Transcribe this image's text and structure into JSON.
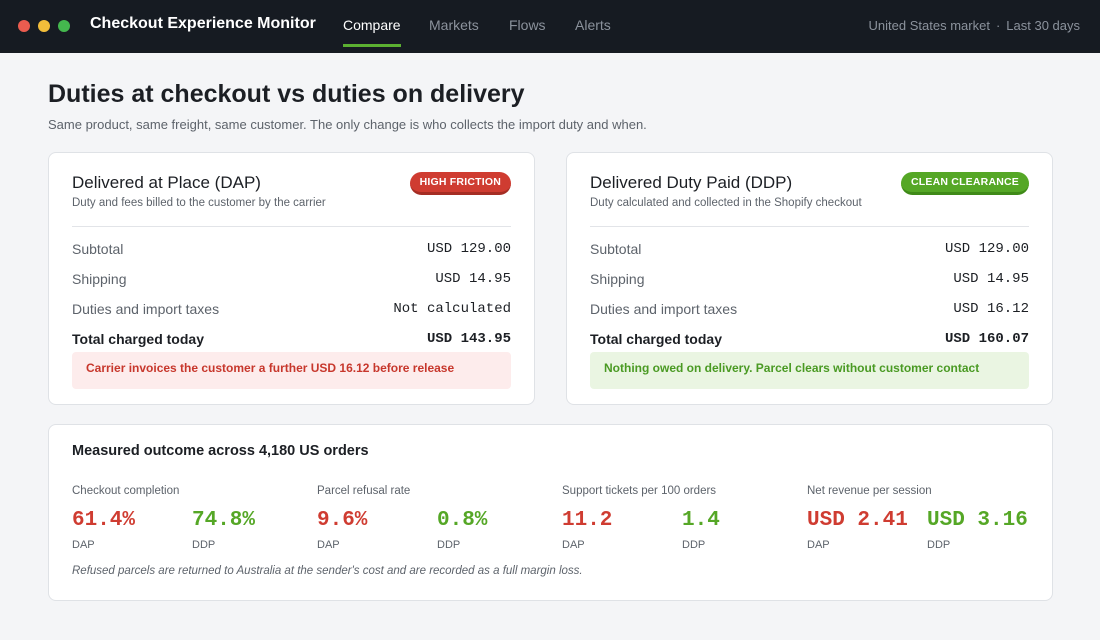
{
  "window": {
    "dots": [
      "close-dot",
      "minimize-dot",
      "maximize-dot"
    ],
    "title": "Checkout Experience Monitor"
  },
  "nav": {
    "tabs": [
      {
        "label": "Compare",
        "active": true
      },
      {
        "label": "Markets",
        "active": false
      },
      {
        "label": "Flows",
        "active": false
      },
      {
        "label": "Alerts",
        "active": false
      }
    ],
    "market": "United States market",
    "separator": "·",
    "period": "Last 30 days"
  },
  "page": {
    "title": "Duties at checkout vs duties on delivery",
    "subtitle": "Same product, same freight, same customer. The only change is who collects the import duty and when."
  },
  "colors": {
    "accent": "#5bb031",
    "dap": "#cf3c31",
    "ddp": "#55a726"
  },
  "cards": {
    "dap": {
      "title": "Delivered at Place (DAP)",
      "description": "Duty and fees billed to the customer by the carrier",
      "badge": "HIGH FRICTION",
      "lines": [
        {
          "label": "Subtotal",
          "value": "USD 129.00"
        },
        {
          "label": "Shipping",
          "value": "USD 14.95"
        },
        {
          "label": "Duties and import taxes",
          "value": "Not calculated"
        },
        {
          "label": "Total charged today",
          "value": "USD 143.95"
        }
      ],
      "callout": "Carrier invoices the customer a further USD 16.12 before release"
    },
    "ddp": {
      "title": "Delivered Duty Paid (DDP)",
      "description": "Duty calculated and collected in the Shopify checkout",
      "badge": "CLEAN CLEARANCE",
      "lines": [
        {
          "label": "Subtotal",
          "value": "USD 129.00"
        },
        {
          "label": "Shipping",
          "value": "USD 14.95"
        },
        {
          "label": "Duties and import taxes",
          "value": "USD 16.12"
        },
        {
          "label": "Total charged today",
          "value": "USD 160.07"
        }
      ],
      "callout": "Nothing owed on delivery. Parcel clears without customer contact"
    }
  },
  "outcome": {
    "title": "Measured outcome across 4,180 US orders",
    "dap_tag": "DAP",
    "ddp_tag": "DDP",
    "metrics": [
      {
        "label": "Checkout completion",
        "dap": "61.4%",
        "ddp": "74.8%"
      },
      {
        "label": "Parcel refusal rate",
        "dap": "9.6%",
        "ddp": "0.8%"
      },
      {
        "label": "Support tickets per 100 orders",
        "dap": "11.2",
        "ddp": "1.4"
      },
      {
        "label": "Net revenue per session",
        "dap": "USD 2.41",
        "ddp": "USD 3.16"
      }
    ],
    "footnote": "Refused parcels are returned to Australia at the sender's cost and are recorded as a full margin loss."
  }
}
